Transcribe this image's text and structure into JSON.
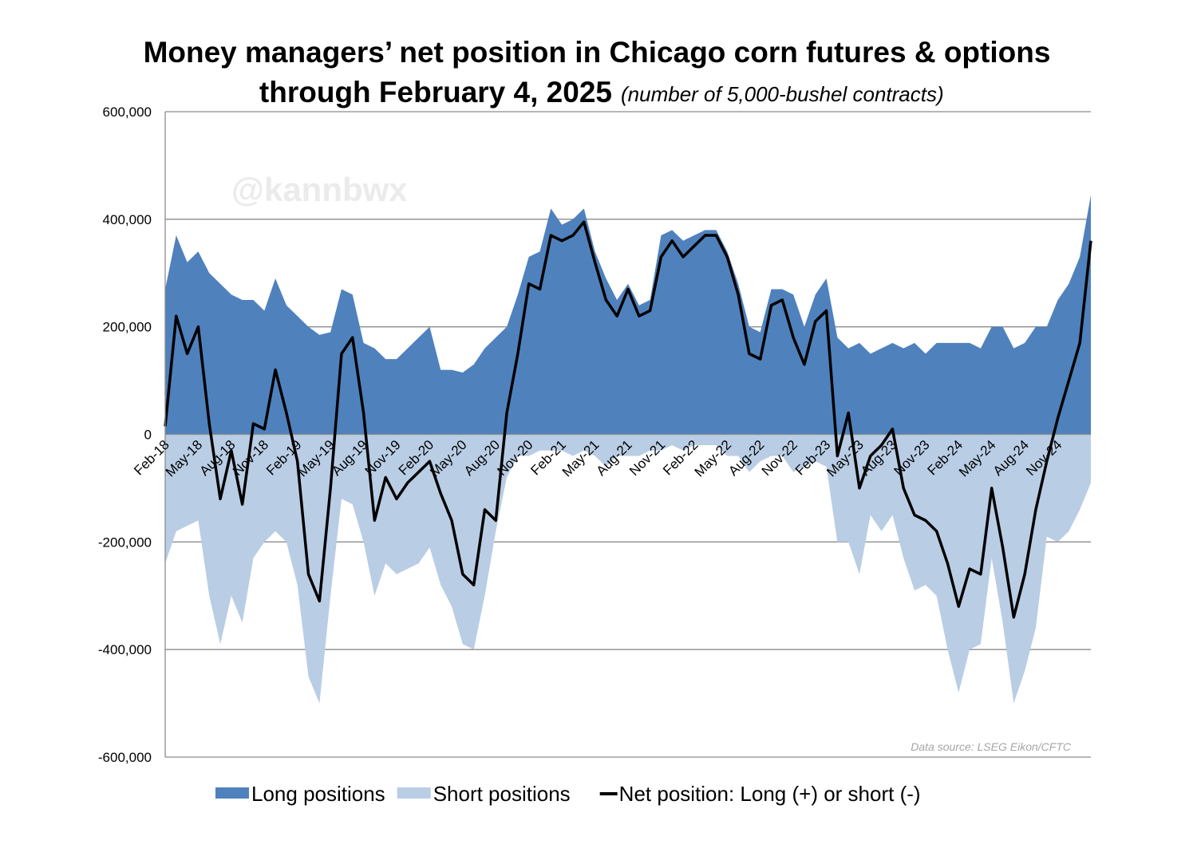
{
  "chart_data": {
    "type": "area",
    "title": "Money managers’ net position in Chicago corn futures & options",
    "title_line2": "through February 4, 2025",
    "subtitle": "(number of 5,000-bushel contracts)",
    "watermark": "@kannbwx",
    "source": "Data source: LSEG Eikon/CFTC",
    "categories": [
      "Feb-18",
      null,
      null,
      "May-18",
      null,
      null,
      "Aug-18",
      null,
      null,
      "Nov-18",
      null,
      null,
      "Feb-19",
      null,
      null,
      "May-19",
      null,
      null,
      "Aug-19",
      null,
      null,
      "Nov-19",
      null,
      null,
      "Feb-20",
      null,
      null,
      "May-20",
      null,
      null,
      "Aug-20",
      null,
      null,
      "Nov-20",
      null,
      null,
      "Feb-21",
      null,
      null,
      "May-21",
      null,
      null,
      "Aug-21",
      null,
      null,
      "Nov-21",
      null,
      null,
      "Feb-22",
      null,
      null,
      "May-22",
      null,
      null,
      "Aug-22",
      null,
      null,
      "Nov-22",
      null,
      null,
      "Feb-23",
      null,
      null,
      "May-23",
      null,
      null,
      "Aug-23",
      null,
      null,
      "Nov-23",
      null,
      null,
      "Feb-24",
      null,
      null,
      "May-24",
      null,
      null,
      "Aug-24",
      null,
      null,
      "Nov-24",
      null,
      null,
      null
    ],
    "series": [
      {
        "name": "Long positions",
        "color": "#4f81bd",
        "style": "area",
        "values": [
          270000,
          370000,
          320000,
          340000,
          300000,
          280000,
          260000,
          250000,
          250000,
          230000,
          290000,
          240000,
          220000,
          200000,
          185000,
          190000,
          270000,
          260000,
          170000,
          160000,
          140000,
          140000,
          160000,
          180000,
          200000,
          120000,
          120000,
          115000,
          130000,
          160000,
          180000,
          200000,
          260000,
          330000,
          340000,
          420000,
          390000,
          400000,
          420000,
          340000,
          290000,
          250000,
          280000,
          240000,
          250000,
          370000,
          380000,
          360000,
          370000,
          380000,
          380000,
          340000,
          280000,
          200000,
          190000,
          270000,
          270000,
          260000,
          200000,
          260000,
          290000,
          180000,
          160000,
          170000,
          150000,
          160000,
          170000,
          160000,
          170000,
          150000,
          170000,
          170000,
          170000,
          170000,
          160000,
          200000,
          200000,
          160000,
          170000,
          200000,
          200000,
          250000,
          280000,
          330000,
          445000
        ]
      },
      {
        "name": "Short positions",
        "color": "#b9cde5",
        "style": "area",
        "values": [
          -240000,
          -180000,
          -170000,
          -160000,
          -300000,
          -390000,
          -300000,
          -350000,
          -230000,
          -200000,
          -180000,
          -200000,
          -280000,
          -450000,
          -500000,
          -300000,
          -120000,
          -130000,
          -200000,
          -300000,
          -240000,
          -260000,
          -250000,
          -240000,
          -210000,
          -280000,
          -320000,
          -390000,
          -400000,
          -300000,
          -180000,
          -80000,
          -40000,
          -40000,
          -30000,
          -30000,
          -30000,
          -40000,
          -30000,
          -40000,
          -60000,
          -40000,
          -40000,
          -40000,
          -30000,
          -30000,
          -20000,
          -30000,
          -20000,
          -20000,
          -20000,
          -40000,
          -40000,
          -70000,
          -50000,
          -40000,
          -40000,
          -70000,
          -60000,
          -50000,
          -60000,
          -200000,
          -200000,
          -260000,
          -150000,
          -180000,
          -150000,
          -230000,
          -290000,
          -280000,
          -300000,
          -400000,
          -480000,
          -400000,
          -390000,
          -230000,
          -350000,
          -500000,
          -440000,
          -360000,
          -190000,
          -200000,
          -180000,
          -140000,
          -90000
        ]
      },
      {
        "name": "Net position: Long (+) or short (-)",
        "color": "#000000",
        "style": "line",
        "values": [
          15000,
          220000,
          150000,
          200000,
          20000,
          -120000,
          -30000,
          -130000,
          20000,
          10000,
          120000,
          40000,
          -50000,
          -260000,
          -310000,
          -100000,
          150000,
          180000,
          40000,
          -160000,
          -80000,
          -120000,
          -90000,
          -70000,
          -50000,
          -110000,
          -160000,
          -260000,
          -280000,
          -140000,
          -160000,
          40000,
          150000,
          280000,
          270000,
          370000,
          360000,
          370000,
          395000,
          320000,
          250000,
          220000,
          270000,
          220000,
          230000,
          330000,
          360000,
          330000,
          350000,
          370000,
          370000,
          330000,
          260000,
          150000,
          140000,
          240000,
          250000,
          180000,
          130000,
          210000,
          230000,
          -40000,
          40000,
          -100000,
          -40000,
          -20000,
          10000,
          -100000,
          -150000,
          -160000,
          -180000,
          -240000,
          -320000,
          -250000,
          -260000,
          -100000,
          -210000,
          -340000,
          -260000,
          -140000,
          -50000,
          30000,
          100000,
          170000,
          360000
        ]
      }
    ],
    "ylim": [
      -600000,
      600000
    ],
    "yticks": [
      {
        "value": -600000,
        "label": "-600,000"
      },
      {
        "value": -400000,
        "label": "-400,000"
      },
      {
        "value": -200000,
        "label": "-200,000"
      },
      0,
      {
        "value": 200000,
        "label": "200,000"
      },
      {
        "value": 400000,
        "label": "400,000"
      },
      {
        "value": 600000,
        "label": "600,000"
      }
    ],
    "grid": true,
    "legend": "bottom"
  }
}
